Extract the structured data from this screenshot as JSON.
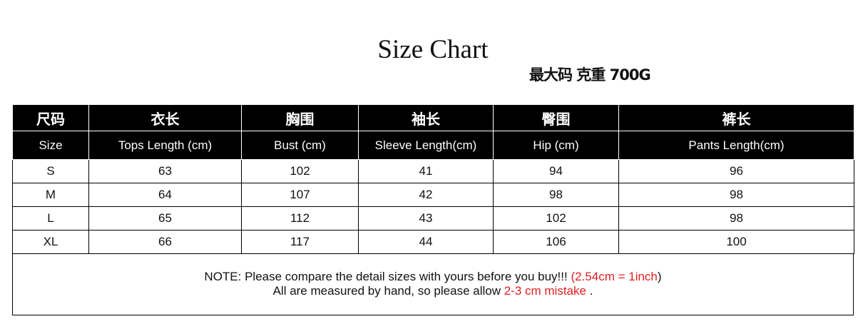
{
  "title": "Size Chart",
  "subtitle": "最大码 克重 700G",
  "table": {
    "header_cn": [
      "尺码",
      "衣长",
      "胸围",
      "袖长",
      "臀围",
      "裤长"
    ],
    "header_en": [
      "Size",
      "Tops Length (cm)",
      "Bust   (cm)",
      "Sleeve Length(cm)",
      "Hip (cm)",
      "Pants Length(cm)"
    ],
    "rows": [
      [
        "S",
        "63",
        "102",
        "41",
        "94",
        "96"
      ],
      [
        "M",
        "64",
        "107",
        "42",
        "98",
        "98"
      ],
      [
        "L",
        "65",
        "112",
        "43",
        "102",
        "98"
      ],
      [
        "XL",
        "66",
        "117",
        "44",
        "106",
        "100"
      ]
    ]
  },
  "note": {
    "line1_black": "NOTE: Please compare the detail sizes with yours before you buy!!! ",
    "line1_red": "(2.54cm = 1inch",
    "line1_end": ")",
    "line2_black": "All are measured by hand, so please allow ",
    "line2_red": "2-3 cm mistake",
    "line2_end": " ."
  },
  "colors": {
    "accent_red": "#e02020",
    "header_bg": "#000000"
  }
}
